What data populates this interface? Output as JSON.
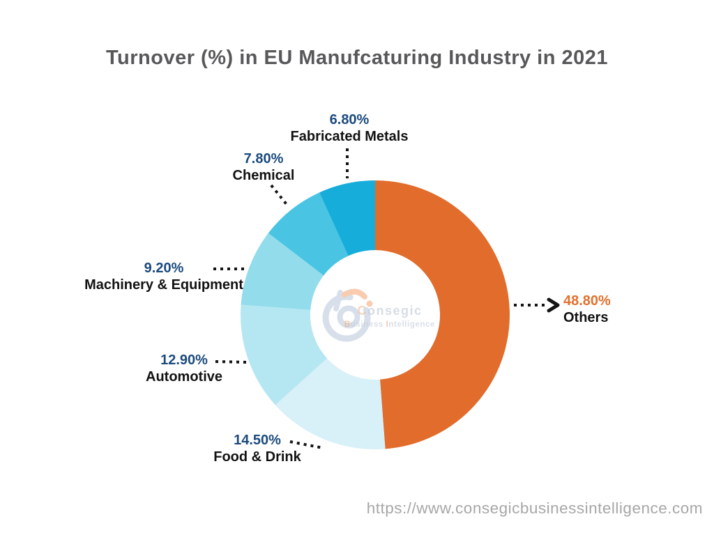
{
  "page": {
    "footer_url": "https://www.consegicbusinessintelligence.com"
  },
  "brand": {
    "c": "C",
    "onsegic": "onsegic",
    "b": "B",
    "usiness": "usiness ",
    "i": "I",
    "ntelligence": "ntelligence"
  },
  "chart_data": {
    "type": "pie",
    "donut": true,
    "title": "Turnover (%) in EU Manufcaturing Industry in 2021",
    "start_angle_deg_from_top_clockwise": 0,
    "inner_radius_ratio": 0.48,
    "legend_position": "none",
    "units": "%",
    "slices": [
      {
        "label": "Others",
        "value": 48.8,
        "pct_label": "48.80%",
        "color": "#e16c2b"
      },
      {
        "label": "Food & Drink",
        "value": 14.5,
        "pct_label": "14.50%",
        "color": "#d8f0f8"
      },
      {
        "label": "Automotive",
        "value": 12.9,
        "pct_label": "12.90%",
        "color": "#b5e7f3"
      },
      {
        "label": "Machinery & Equipment",
        "value": 9.2,
        "pct_label": "9.20%",
        "color": "#93dcec"
      },
      {
        "label": "Chemical",
        "value": 7.8,
        "pct_label": "7.80%",
        "color": "#49c5e3"
      },
      {
        "label": "Fabricated Metals",
        "value": 6.8,
        "pct_label": "6.80%",
        "color": "#17addb"
      }
    ],
    "colors": {
      "pct_label": "#1b4a7d",
      "others_pct_label": "#e2702e",
      "slice_name_label": "#121212",
      "leader_line": "#141414",
      "title": "#58585a"
    }
  }
}
